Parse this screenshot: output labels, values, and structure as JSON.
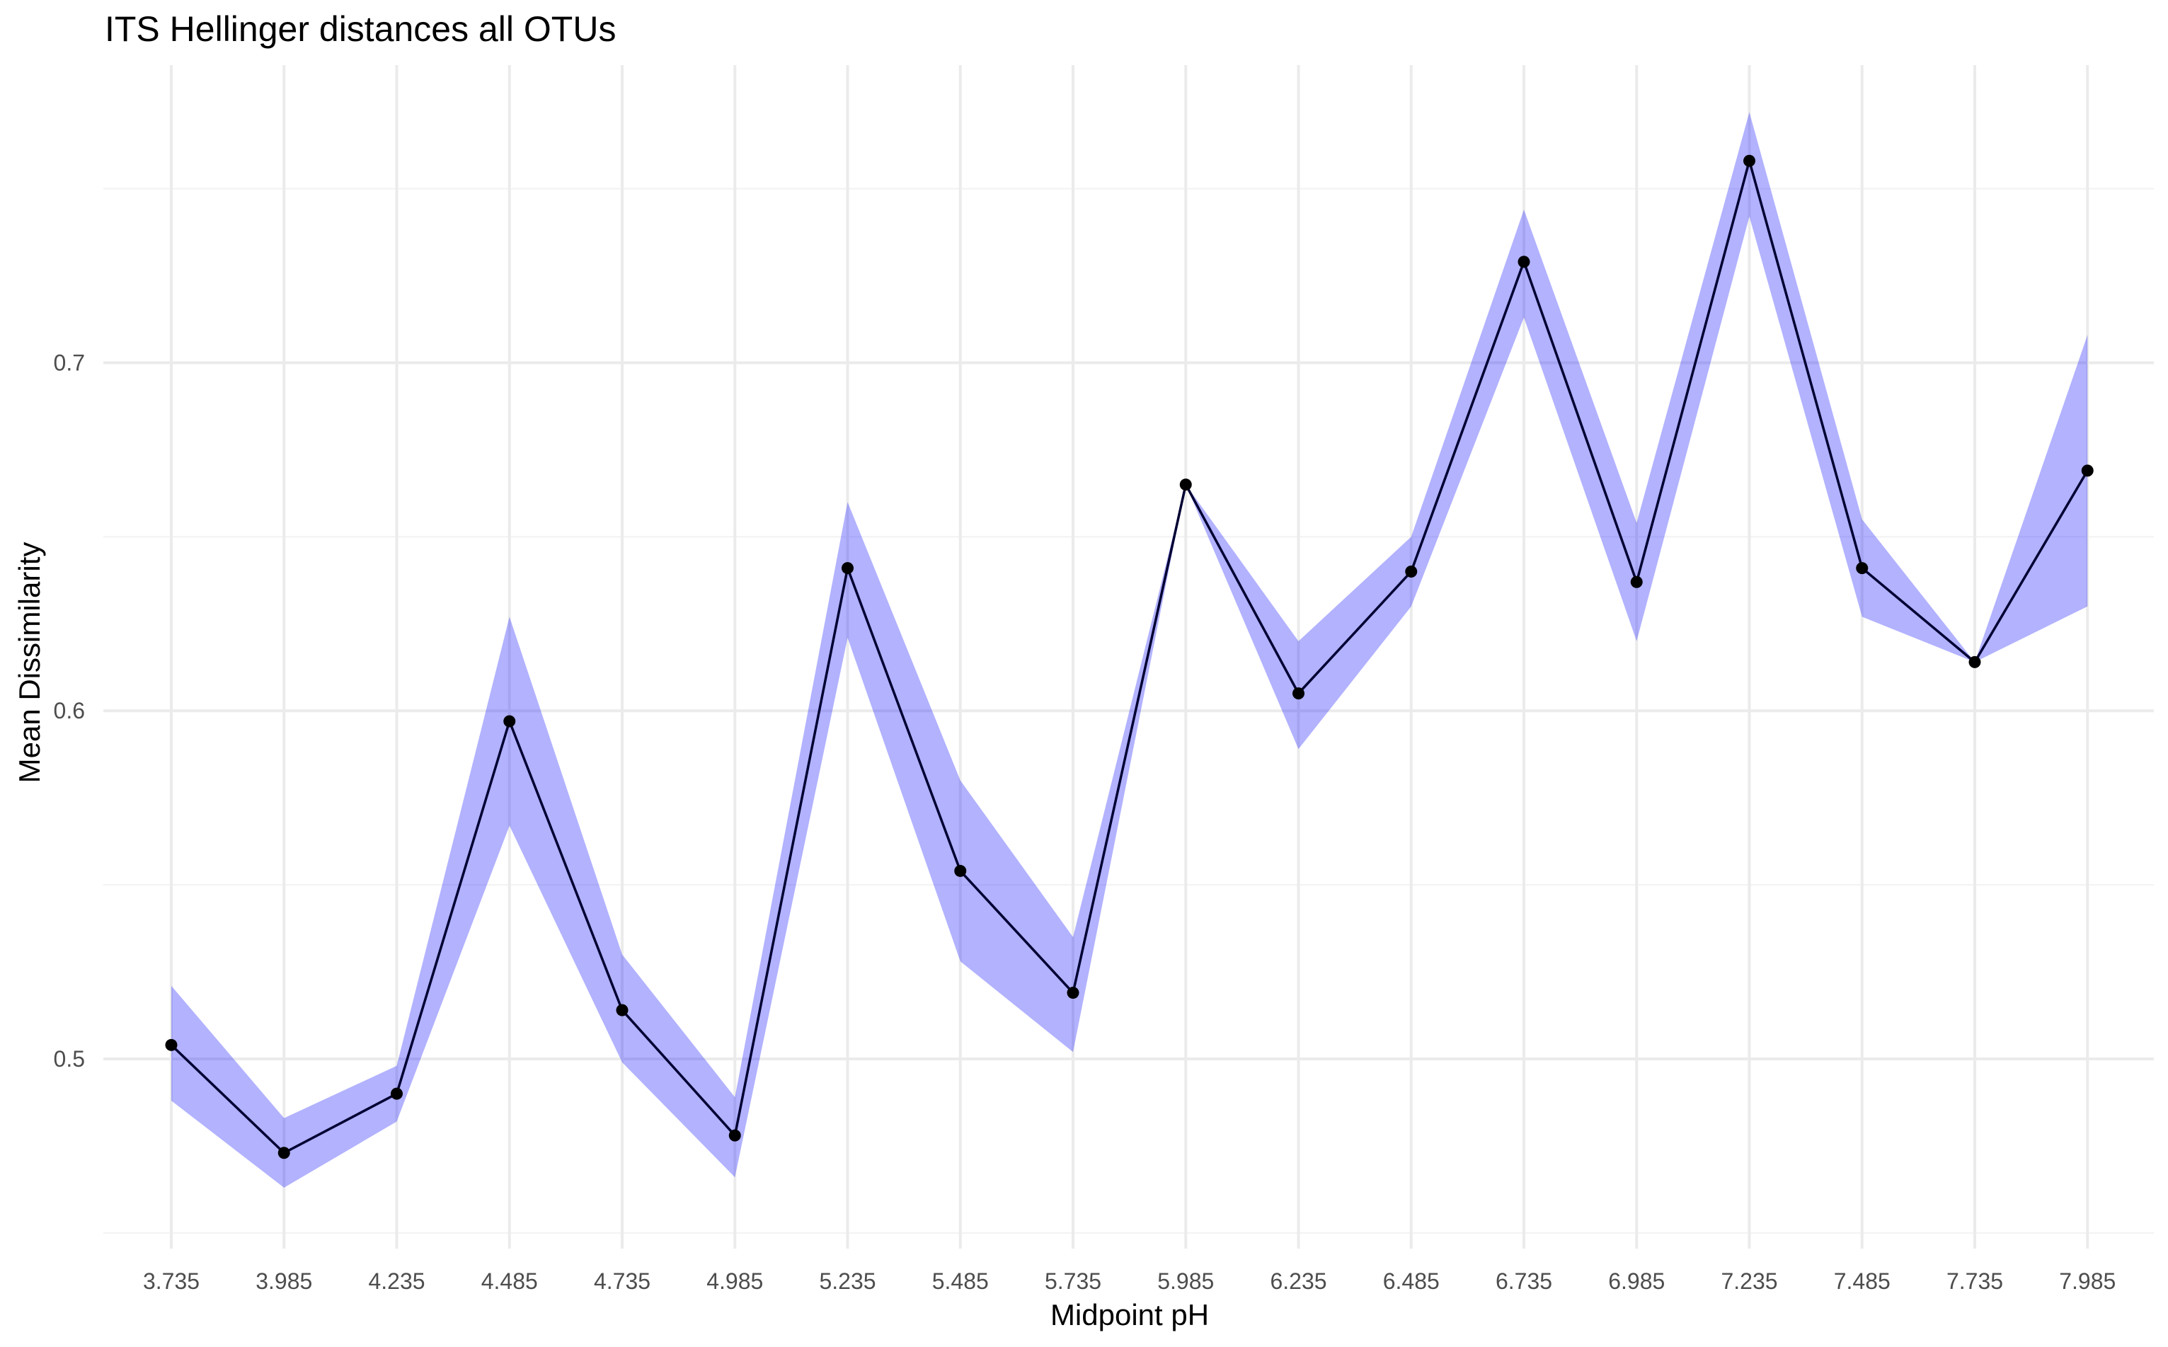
{
  "chart_data": {
    "type": "line",
    "title": "ITS Hellinger distances all OTUs",
    "xlabel": "Midpoint pH",
    "ylabel": "Mean Dissimilarity",
    "x": [
      3.735,
      3.985,
      4.235,
      4.485,
      4.735,
      4.985,
      5.235,
      5.485,
      5.735,
      5.985,
      6.235,
      6.485,
      6.735,
      6.985,
      7.235,
      7.485,
      7.735,
      7.985
    ],
    "x_tick_labels": [
      "3.735",
      "3.985",
      "4.235",
      "4.485",
      "4.735",
      "4.985",
      "5.235",
      "5.485",
      "5.735",
      "5.985",
      "6.235",
      "6.485",
      "6.735",
      "6.985",
      "7.235",
      "7.485",
      "7.735",
      "7.985"
    ],
    "y_ticks": [
      0.5,
      0.6,
      0.7
    ],
    "y_tick_labels": [
      "0.5",
      "0.6",
      "0.7"
    ],
    "y_minor_ticks": [
      0.45,
      0.55,
      0.65,
      0.75
    ],
    "ylim": [
      0.4455,
      0.7855
    ],
    "grid": true,
    "series": [
      {
        "values": [
          0.504,
          0.473,
          0.49,
          0.597,
          0.514,
          0.478,
          0.641,
          0.554,
          0.519,
          0.665,
          0.605,
          0.64,
          0.729,
          0.637,
          0.758,
          0.641,
          0.614,
          0.669
        ],
        "lower": [
          0.488,
          0.463,
          0.482,
          0.567,
          0.499,
          0.466,
          0.621,
          0.528,
          0.502,
          0.665,
          0.589,
          0.63,
          0.713,
          0.62,
          0.742,
          0.627,
          0.614,
          0.63
        ],
        "upper": [
          0.521,
          0.483,
          0.498,
          0.627,
          0.53,
          0.489,
          0.66,
          0.58,
          0.535,
          0.665,
          0.62,
          0.65,
          0.744,
          0.654,
          0.772,
          0.655,
          0.614,
          0.708
        ]
      }
    ],
    "colors": {
      "line": "#000033",
      "point": "#000000",
      "ribbon": "#0000ff",
      "ribbon_opacity": 0.3,
      "grid": "#ebebeb"
    }
  }
}
